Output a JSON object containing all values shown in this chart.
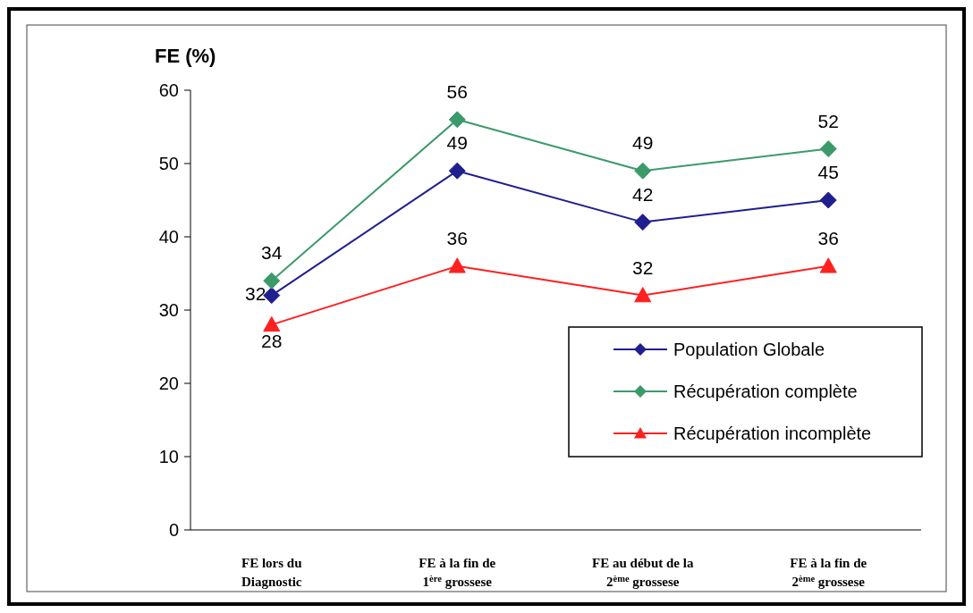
{
  "chart_data": {
    "type": "line",
    "ylabel": "FE (%)",
    "categories": [
      "FE lors du\nDiagnostic",
      "FE à la fin de\n1$^{ère}$ grossese",
      "FE au début  de la\n2$^{ème}$ grossese",
      "FE à la fin de\n2$^{ème}$ grossese"
    ],
    "series": [
      {
        "name": "Population Globale",
        "color": "#1f1f8f",
        "marker": "diamond",
        "values": [
          32,
          49,
          42,
          45
        ]
      },
      {
        "name": "Récupération complète",
        "color": "#3c9a6a",
        "marker": "diamond",
        "values": [
          34,
          56,
          49,
          52
        ]
      },
      {
        "name": "Récupération incomplète",
        "color": "#ff2020",
        "marker": "triangle",
        "values": [
          28,
          36,
          32,
          36
        ]
      }
    ],
    "ylim": [
      0,
      60
    ],
    "yticks": [
      0,
      10,
      20,
      30,
      40,
      50,
      60
    ],
    "data_labels": true,
    "legend": "right",
    "grid": false,
    "line_style": "solid"
  }
}
